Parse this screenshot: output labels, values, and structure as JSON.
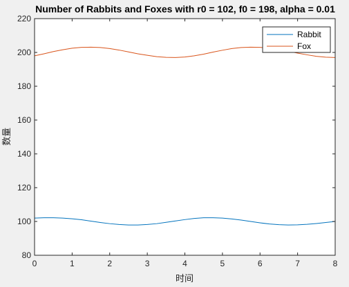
{
  "chart_data": {
    "type": "line",
    "title": "Number of Rabbits and Foxes with r0 = 102, f0 = 198, alpha = 0.01",
    "xlabel": "时间",
    "ylabel": "数量",
    "xlim": [
      0,
      8
    ],
    "ylim": [
      80,
      220
    ],
    "xticks": [
      0,
      1,
      2,
      3,
      4,
      5,
      6,
      7,
      8
    ],
    "yticks": [
      80,
      100,
      120,
      140,
      160,
      180,
      200,
      220
    ],
    "grid": false,
    "legend_position": "top-right",
    "series": [
      {
        "name": "Rabbit",
        "color": "#0072bd",
        "x": [
          0,
          0.25,
          0.5,
          0.75,
          1.0,
          1.25,
          1.5,
          1.75,
          2.0,
          2.25,
          2.5,
          2.75,
          3.0,
          3.25,
          3.5,
          3.75,
          4.0,
          4.25,
          4.5,
          4.75,
          5.0,
          5.25,
          5.5,
          5.75,
          6.0,
          6.25,
          6.5,
          6.75,
          7.0,
          7.25,
          7.5,
          7.75,
          8.0
        ],
        "values": [
          102.0,
          102.2,
          102.2,
          102.0,
          101.6,
          101.0,
          100.2,
          99.4,
          98.7,
          98.2,
          97.9,
          97.9,
          98.2,
          98.7,
          99.5,
          100.3,
          101.1,
          101.8,
          102.2,
          102.2,
          102.0,
          101.5,
          100.8,
          100.0,
          99.2,
          98.5,
          98.1,
          97.9,
          98.0,
          98.3,
          98.8,
          99.4,
          100.0
        ]
      },
      {
        "name": "Fox",
        "color": "#d95319",
        "x": [
          0,
          0.25,
          0.5,
          0.75,
          1.0,
          1.25,
          1.5,
          1.75,
          2.0,
          2.25,
          2.5,
          2.75,
          3.0,
          3.25,
          3.5,
          3.75,
          4.0,
          4.25,
          4.5,
          4.75,
          5.0,
          5.25,
          5.5,
          5.75,
          6.0,
          6.25,
          6.5,
          6.75,
          7.0,
          7.25,
          7.5,
          7.75,
          8.0
        ],
        "values": [
          198.0,
          199.2,
          200.5,
          201.6,
          202.5,
          203.0,
          203.1,
          202.9,
          202.3,
          201.4,
          200.3,
          199.2,
          198.3,
          197.5,
          197.1,
          197.0,
          197.3,
          198.0,
          199.0,
          200.2,
          201.3,
          202.3,
          202.9,
          203.1,
          203.0,
          202.6,
          201.8,
          200.7,
          199.6,
          198.6,
          197.7,
          197.2,
          197.0
        ]
      }
    ]
  }
}
